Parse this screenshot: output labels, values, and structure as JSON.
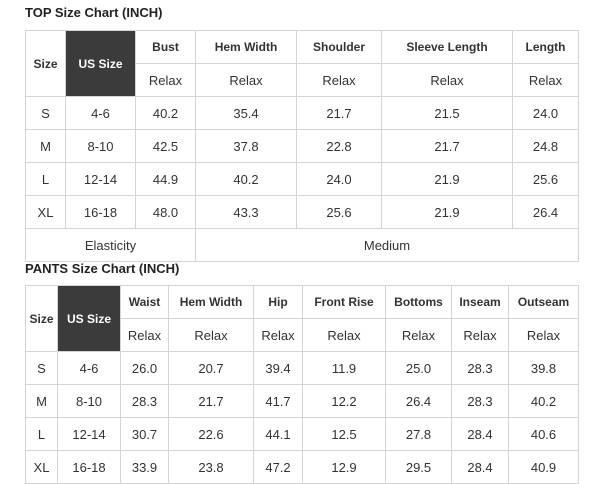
{
  "top": {
    "title": "TOP Size Chart (INCH)",
    "headers": [
      "Size",
      "US Size",
      "Bust",
      "Hem Width",
      "Shoulder",
      "Sleeve Length",
      "Length"
    ],
    "fit_row": [
      "Relax",
      "Relax",
      "Relax",
      "Relax",
      "Relax"
    ],
    "rows": [
      [
        "S",
        "4-6",
        "40.2",
        "35.4",
        "21.7",
        "21.5",
        "24.0"
      ],
      [
        "M",
        "8-10",
        "42.5",
        "37.8",
        "22.8",
        "21.7",
        "24.8"
      ],
      [
        "L",
        "12-14",
        "44.9",
        "40.2",
        "24.0",
        "21.9",
        "25.6"
      ],
      [
        "XL",
        "16-18",
        "48.0",
        "43.3",
        "25.6",
        "21.9",
        "26.4"
      ]
    ],
    "footer": [
      "Elasticity",
      "Medium"
    ]
  },
  "pants": {
    "title": "PANTS Size Chart (INCH)",
    "headers": [
      "Size",
      "US Size",
      "Waist",
      "Hem Width",
      "Hip",
      "Front Rise",
      "Bottoms",
      "Inseam",
      "Outseam"
    ],
    "fit_row": [
      "Relax",
      "Relax",
      "Relax",
      "Relax",
      "Relax",
      "Relax",
      "Relax"
    ],
    "rows": [
      [
        "S",
        "4-6",
        "26.0",
        "20.7",
        "39.4",
        "11.9",
        "25.0",
        "28.3",
        "39.8"
      ],
      [
        "M",
        "8-10",
        "28.3",
        "21.7",
        "41.7",
        "12.2",
        "26.4",
        "28.3",
        "40.2"
      ],
      [
        "L",
        "12-14",
        "30.7",
        "22.6",
        "44.1",
        "12.5",
        "27.8",
        "28.4",
        "40.6"
      ],
      [
        "XL",
        "16-18",
        "33.9",
        "23.8",
        "47.2",
        "12.9",
        "29.5",
        "28.4",
        "40.9"
      ]
    ]
  }
}
